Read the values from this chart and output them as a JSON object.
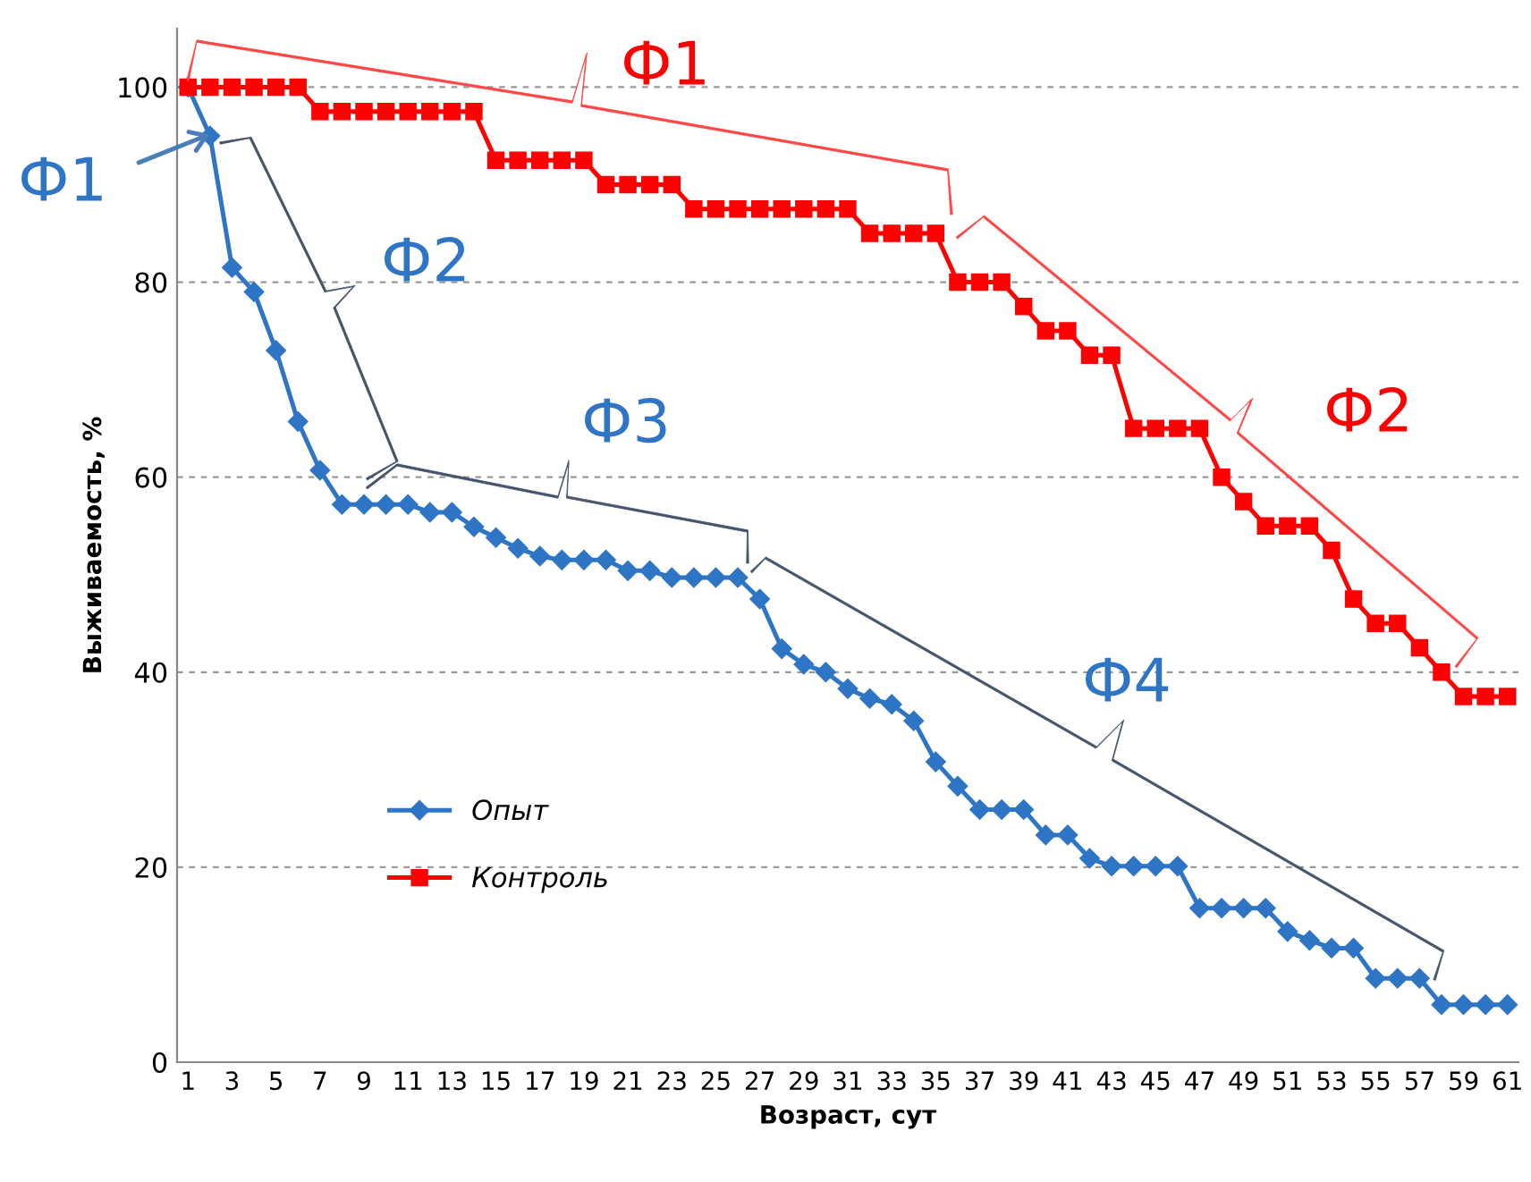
{
  "chart_data": {
    "type": "line",
    "xlabel": "Возраст, сут",
    "ylabel": "Выживаемость, %",
    "categories": [
      "1",
      null,
      "3",
      null,
      "5",
      null,
      "7",
      null,
      "9",
      null,
      "11",
      null,
      "13",
      null,
      "15",
      null,
      "17",
      null,
      "19",
      null,
      "21",
      null,
      "23",
      null,
      "25",
      null,
      "27",
      null,
      "29",
      null,
      "31",
      null,
      "33",
      null,
      "35",
      null,
      "37",
      null,
      "39",
      null,
      "41",
      null,
      "43",
      null,
      "45",
      null,
      "47",
      null,
      "49",
      null,
      "51",
      null,
      "53",
      null,
      "55",
      null,
      "57",
      null,
      "59",
      null,
      "61"
    ],
    "series": [
      {
        "name": "Опыт",
        "color": "#2e75c6",
        "marker": "diamond",
        "values": [
          100,
          95,
          81.5,
          79,
          73,
          65.7,
          60.7,
          57.2,
          57.2,
          57.2,
          57.2,
          56.4,
          56.4,
          54.9,
          53.8,
          52.7,
          51.9,
          51.5,
          51.5,
          51.5,
          50.4,
          50.4,
          49.7,
          49.7,
          49.7,
          49.7,
          47.5,
          42.4,
          40.8,
          40,
          38.3,
          37.3,
          36.7,
          35,
          30.8,
          28.3,
          25.9,
          25.9,
          25.9,
          23.3,
          23.3,
          20.9,
          20.1,
          20.1,
          20.1,
          20.1,
          15.8,
          15.8,
          15.8,
          15.8,
          13.4,
          12.5,
          11.7,
          11.7,
          8.6,
          8.6,
          8.6,
          5.9,
          5.9,
          5.9,
          5.9
        ]
      },
      {
        "name": "Контроль",
        "color": "#ff0000",
        "marker": "square",
        "values": [
          100,
          100,
          100,
          100,
          100,
          100,
          97.5,
          97.5,
          97.5,
          97.5,
          97.5,
          97.5,
          97.5,
          97.5,
          92.5,
          92.5,
          92.5,
          92.5,
          92.5,
          90,
          90,
          90,
          90,
          87.5,
          87.5,
          87.5,
          87.5,
          87.5,
          87.5,
          87.5,
          87.5,
          85,
          85,
          85,
          85,
          80,
          80,
          80,
          77.5,
          75,
          75,
          72.5,
          72.5,
          65,
          65,
          65,
          65,
          60,
          57.5,
          55,
          55,
          55,
          52.5,
          47.5,
          45,
          45,
          42.5,
          40,
          37.5,
          37.5,
          37.5
        ]
      }
    ],
    "ylim": [
      0,
      106
    ],
    "yticks": [
      0,
      20,
      40,
      60,
      80,
      100
    ],
    "grid": "y",
    "legend": "lower left",
    "line_style": "solid",
    "annotations": [
      "Ф1",
      "Ф2",
      "Ф1",
      "Ф2",
      "Ф3",
      "Ф4"
    ]
  }
}
